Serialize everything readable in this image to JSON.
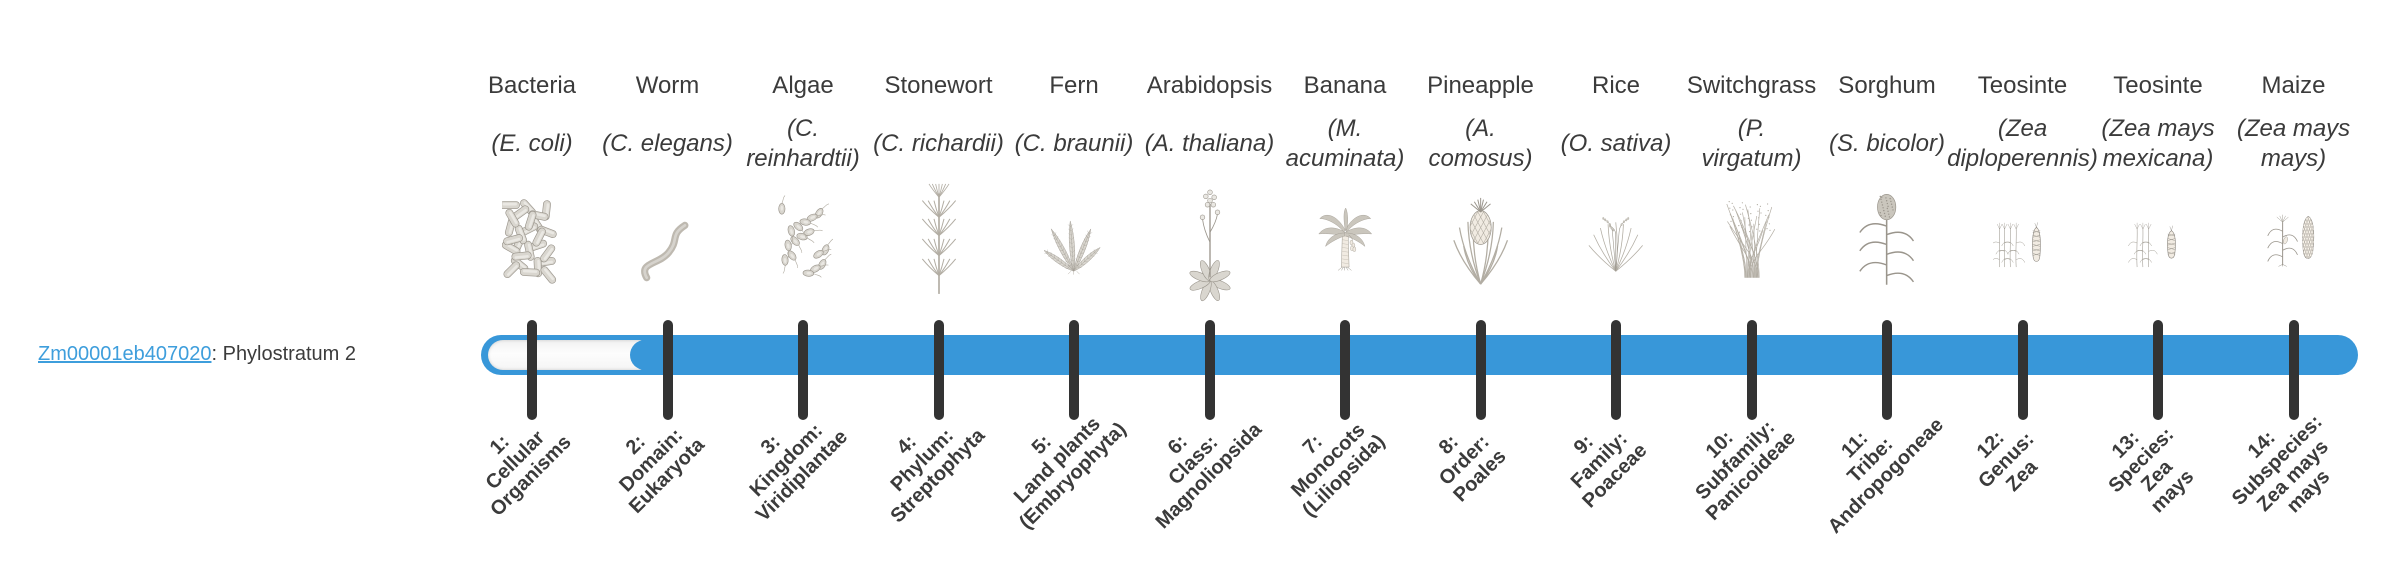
{
  "gene": {
    "link_text": "Zm00001eb407020",
    "rest_text": ": Phylostratum 2",
    "phylostratum_value": 2
  },
  "colors": {
    "bar_blue": "#3897D9",
    "link_blue": "#3E9EDC",
    "tick_dark": "#333333",
    "text_dark": "#3b3b3b",
    "track_white": "#fbfbfb",
    "illustration_gray": "#9a958c"
  },
  "timeline": {
    "total_phylostrata": 14,
    "filled_from_phylostratum": 2
  },
  "organisms": [
    {
      "name": "Bacteria",
      "species_lines": [
        "(E. coli)"
      ],
      "icon": "bacteria",
      "stratum_lines": [
        "1:",
        "Cellular",
        "Organisms"
      ]
    },
    {
      "name": "Worm",
      "species_lines": [
        "(C. elegans)"
      ],
      "icon": "worm",
      "stratum_lines": [
        "2:",
        "Domain:",
        "Eukaryota"
      ]
    },
    {
      "name": "Algae",
      "species_lines": [
        "(C.",
        "reinhardtii)"
      ],
      "icon": "algae",
      "stratum_lines": [
        "3:",
        "Kingdom:",
        "Viridiplantae"
      ]
    },
    {
      "name": "Stonewort",
      "species_lines": [
        "(C. richardii)"
      ],
      "icon": "stonewort",
      "stratum_lines": [
        "4:",
        "Phylum:",
        "Streptophyta"
      ]
    },
    {
      "name": "Fern",
      "species_lines": [
        "(C. braunii)"
      ],
      "icon": "fern",
      "stratum_lines": [
        "5:",
        "Land plants",
        "(Embryophyta)"
      ]
    },
    {
      "name": "Arabidopsis",
      "species_lines": [
        "(A. thaliana)"
      ],
      "icon": "arabidopsis",
      "stratum_lines": [
        "6:",
        "Class:",
        "Magnoliopsida"
      ]
    },
    {
      "name": "Banana",
      "species_lines": [
        "(M.",
        "acuminata)"
      ],
      "icon": "banana",
      "stratum_lines": [
        "7:",
        "Monocots",
        "(Liliopsida)"
      ]
    },
    {
      "name": "Pineapple",
      "species_lines": [
        "(A.",
        "comosus)"
      ],
      "icon": "pineapple",
      "stratum_lines": [
        "8:",
        "Order:",
        "Poales"
      ]
    },
    {
      "name": "Rice",
      "species_lines": [
        "(O. sativa)"
      ],
      "icon": "rice",
      "stratum_lines": [
        "9:",
        "Family:",
        "Poaceae"
      ]
    },
    {
      "name": "Switchgrass",
      "species_lines": [
        "(P.",
        "virgatum)"
      ],
      "icon": "switchgrass",
      "stratum_lines": [
        "10:",
        "Subfamily:",
        "Panicoideae"
      ]
    },
    {
      "name": "Sorghum",
      "species_lines": [
        "(S. bicolor)"
      ],
      "icon": "sorghum",
      "stratum_lines": [
        "11:",
        "Tribe:",
        "Andropogoneae"
      ]
    },
    {
      "name": "Teosinte",
      "species_lines": [
        "(Zea",
        "diploperennis)"
      ],
      "icon": "teosinte-diploperennis",
      "stratum_lines": [
        "12:",
        "Genus:",
        "Zea"
      ]
    },
    {
      "name": "Teosinte",
      "species_lines": [
        "(Zea mays",
        "mexicana)"
      ],
      "icon": "teosinte-mexicana",
      "stratum_lines": [
        "13:",
        "Species:",
        "Zea",
        "mays"
      ]
    },
    {
      "name": "Maize",
      "species_lines": [
        "(Zea mays",
        "mays)"
      ],
      "icon": "maize",
      "stratum_lines": [
        "14:",
        "Subspecies:",
        "Zea mays",
        "mays"
      ]
    }
  ]
}
